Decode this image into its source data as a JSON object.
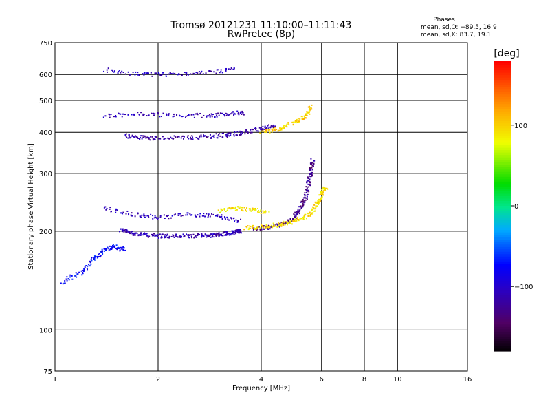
{
  "header": {
    "title": "Tromsø 20121231 11:10:00–11:11:43",
    "subtitle": "RwPretec (8p)"
  },
  "stats": {
    "heading": "Phases",
    "line_o": "mean, sd,O: −89.5, 16.9",
    "line_x": "mean, sd,X:  83.7, 19.1"
  },
  "chart_data": {
    "type": "scatter",
    "xlabel": "Frequency [MHz]",
    "ylabel": "Stationary phase Virtual Height [km]",
    "x_scale": "log",
    "y_scale": "log",
    "xlim": [
      1,
      16
    ],
    "ylim": [
      75,
      750
    ],
    "x_ticks": [
      1,
      2,
      4,
      6,
      8,
      10,
      16
    ],
    "x_tick_labels": [
      "1",
      "2",
      "4",
      "6",
      "8",
      "10",
      "16"
    ],
    "y_ticks": [
      75,
      100,
      200,
      300,
      400,
      500,
      600,
      750
    ],
    "y_tick_labels": [
      "75",
      "100",
      "200",
      "300",
      "400",
      "500",
      "600",
      "750"
    ],
    "grid": true,
    "colorbar": {
      "label": "[deg]",
      "range": [
        -180,
        180
      ],
      "ticks": [
        100,
        0,
        -100
      ],
      "tick_labels": [
        "100",
        "0",
        "−100"
      ]
    },
    "traces": [
      {
        "desc": "low F-region O trace",
        "points": [
          [
            1.55,
            202
          ],
          [
            1.65,
            198
          ],
          [
            1.8,
            195
          ],
          [
            2.0,
            193
          ],
          [
            2.2,
            193
          ],
          [
            2.5,
            193
          ],
          [
            2.8,
            194
          ],
          [
            3.0,
            195
          ],
          [
            3.2,
            197
          ],
          [
            3.4,
            199
          ],
          [
            3.5,
            200
          ]
        ],
        "phase": -110
      },
      {
        "desc": "F-region O cusp",
        "points": [
          [
            3.8,
            203
          ],
          [
            4.2,
            205
          ],
          [
            4.6,
            210
          ],
          [
            5.0,
            220
          ],
          [
            5.2,
            235
          ],
          [
            5.4,
            255
          ],
          [
            5.5,
            280
          ],
          [
            5.6,
            305
          ],
          [
            5.65,
            330
          ]
        ],
        "phase": -125
      },
      {
        "desc": "F-region X trace",
        "points": [
          [
            3.6,
            205
          ],
          [
            4.0,
            206
          ],
          [
            4.5,
            209
          ],
          [
            5.0,
            214
          ],
          [
            5.5,
            224
          ],
          [
            5.8,
            240
          ],
          [
            6.0,
            258
          ],
          [
            6.2,
            275
          ]
        ],
        "phase": 95
      },
      {
        "desc": "multihop O trace",
        "points": [
          [
            1.6,
            390
          ],
          [
            1.8,
            385
          ],
          [
            2.0,
            384
          ],
          [
            2.4,
            385
          ],
          [
            2.8,
            388
          ],
          [
            3.2,
            393
          ],
          [
            3.6,
            400
          ],
          [
            4.0,
            410
          ],
          [
            4.4,
            422
          ]
        ],
        "phase": -115
      },
      {
        "desc": "multihop X trace",
        "points": [
          [
            4.0,
            400
          ],
          [
            4.5,
            410
          ],
          [
            5.0,
            430
          ],
          [
            5.4,
            450
          ],
          [
            5.6,
            480
          ]
        ],
        "phase": 100
      },
      {
        "desc": "spread F cluster 230 km",
        "points": [
          [
            1.4,
            235
          ],
          [
            1.7,
            225
          ],
          [
            2.0,
            220
          ],
          [
            2.5,
            225
          ],
          [
            3.0,
            222
          ],
          [
            3.5,
            215
          ]
        ],
        "phase": -105
      },
      {
        "desc": "spread yellow band 230 km",
        "points": [
          [
            3.0,
            230
          ],
          [
            3.4,
            235
          ],
          [
            3.8,
            232
          ],
          [
            4.2,
            228
          ]
        ],
        "phase": 90
      },
      {
        "desc": "band 450 km",
        "points": [
          [
            1.4,
            450
          ],
          [
            1.8,
            455
          ],
          [
            2.2,
            450
          ],
          [
            2.8,
            450
          ],
          [
            3.2,
            455
          ],
          [
            3.6,
            460
          ]
        ],
        "phase": -110
      },
      {
        "desc": "upper band 600 km",
        "points": [
          [
            1.4,
            620
          ],
          [
            1.8,
            600
          ],
          [
            2.2,
            600
          ],
          [
            2.8,
            610
          ],
          [
            3.4,
            620
          ]
        ],
        "phase": -105
      },
      {
        "desc": "low spread 120-180 km",
        "points": [
          [
            1.05,
            140
          ],
          [
            1.2,
            150
          ],
          [
            1.3,
            165
          ],
          [
            1.4,
            175
          ],
          [
            1.5,
            180
          ],
          [
            1.6,
            175
          ]
        ],
        "phase": -75
      }
    ]
  }
}
